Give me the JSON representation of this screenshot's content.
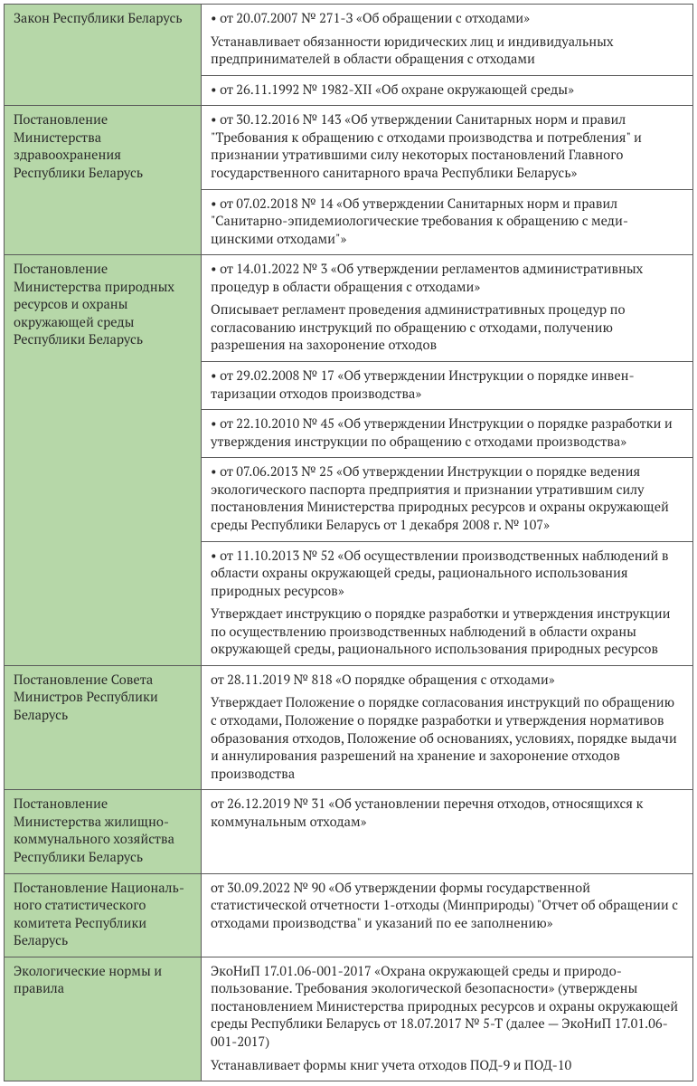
{
  "colors": {
    "left_bg": "#b6d7a8",
    "right_bg": "#ffffff",
    "border": "#5a5a5a",
    "text": "#2a2a2a"
  },
  "typography": {
    "font_family": "PT Serif, Georgia, Times New Roman, serif",
    "font_size_pt": 11,
    "line_height": 1.35
  },
  "rows": [
    {
      "left": "Закон Республики Беларусь",
      "left_rowspan": 2,
      "right": [
        "• от 20.07.2007 № 271-З «Об обращении с отходами»",
        "Устанавливает обязанности юридических лиц и индивидуальных предпринимателей в области обращения с отходами"
      ]
    },
    {
      "right": [
        "• от 26.11.1992 № 1982-XII «Об охране окружающей среды»"
      ]
    },
    {
      "left": "Постановление Министерства здравоохране­ния Республики Беларусь",
      "left_rowspan": 2,
      "right": [
        "• от 30.12.2016 № 143 «Об утверждении Санитарных норм и правил \"Требования к обращению с отходами производства и потребления\" и признании утратившими силу некоторых постановлений Главного государственного санитарного врача Республики Беларусь»"
      ]
    },
    {
      "right": [
        "• от 07.02.2018 № 14 «Об утверждении Санитарных норм и правил \"Санитарно-эпидемиологические требования к обращению с меди­цинскими отходами\"»"
      ]
    },
    {
      "left": "Постановление Министерства природных ресурсов и охраны окружающей среды Республики Беларусь",
      "left_rowspan": 5,
      "right": [
        "• от 14.01.2022 № 3 «Об утверждении регламентов административ­ных процедур в области обращения с отходами»",
        "Описывает регламент проведения административных процедур по согласованию инструкций по обращению с отходами, получению разрешения на захоронение отходов"
      ]
    },
    {
      "right": [
        "• от 29.02.2008 № 17 «Об утверждении Инструкции о порядке инвен­таризации отходов производства»"
      ]
    },
    {
      "right": [
        "• от 22.10.2010 № 45 «Об утверждении Инструкции о порядке разра­ботки и утверждения инструкции по обращению с отходами произ­водства»"
      ]
    },
    {
      "right": [
        "• от 07.06.2013 № 25 «Об утверждении Инструкции о порядке ве­дения экологического паспорта предприятия и признании утра­тившим силу постановления Министерства природных ресурсов и охраны окружающей среды Республики Беларусь от 1 декабря 2008 г. № 107»"
      ]
    },
    {
      "right": [
        "• от 11.10.2013 № 52 «Об осуществлении производственных наблю­дений в области охраны окружающей среды, рационального исполь­зования природных ресурсов»",
        "Утверждает инструкцию о порядке разработки и утверждения инструкции по осуществлению производственных наблюдений в области охраны окружающей среды, рационального использования природных ресурсов"
      ]
    },
    {
      "left": "Постановление Совета Министров Республики Беларусь",
      "left_rowspan": 1,
      "right": [
        "от 28.11.2019 № 818 «О порядке обращения с отходами»",
        "Утверждает Положение о порядке согласования инструкций по об­ращению с отходами, Положение о порядке разработки и утвержде­ния нормативов образования отходов, Положение об основаниях, ус­ловиях, порядке выдачи и аннулирования разрешений на хранение и захоронение отходов производства"
      ]
    },
    {
      "left": "Постановление Министерства жилищно-коммунального хо­зяйства Республики Беларусь",
      "left_rowspan": 1,
      "right": [
        "от 26.12.2019 № 31 «Об установлении перечня отходов, относящихся к коммунальным отходам»"
      ]
    },
    {
      "left": "Постановление Националь­но­го статистического комитета Республики Беларусь",
      "left_rowspan": 1,
      "right": [
        "от 30.09.2022 № 90 «Об утверждении формы государственной статистической отчетности 1-отходы (Минприроды) \"Отчет об обращении с отходами производства\" и указаний по ее заполнению»"
      ]
    },
    {
      "left": "Экологические нормы и правила",
      "left_rowspan": 1,
      "right": [
        "ЭкоНиП 17.01.06-001-2017 «Охрана окружающей среды и природо­пользование. Требования экологической безопасности» (утвержде­ны постановлением Министерства природных ресурсов и охраны окружающей среды Республики Беларусь от 18.07.2017 № 5-Т (далее — ЭкоНиП 17.01.06-001-2017)",
        "Устанавливает формы книг учета отходов ПОД-9 и ПОД-10"
      ]
    }
  ]
}
